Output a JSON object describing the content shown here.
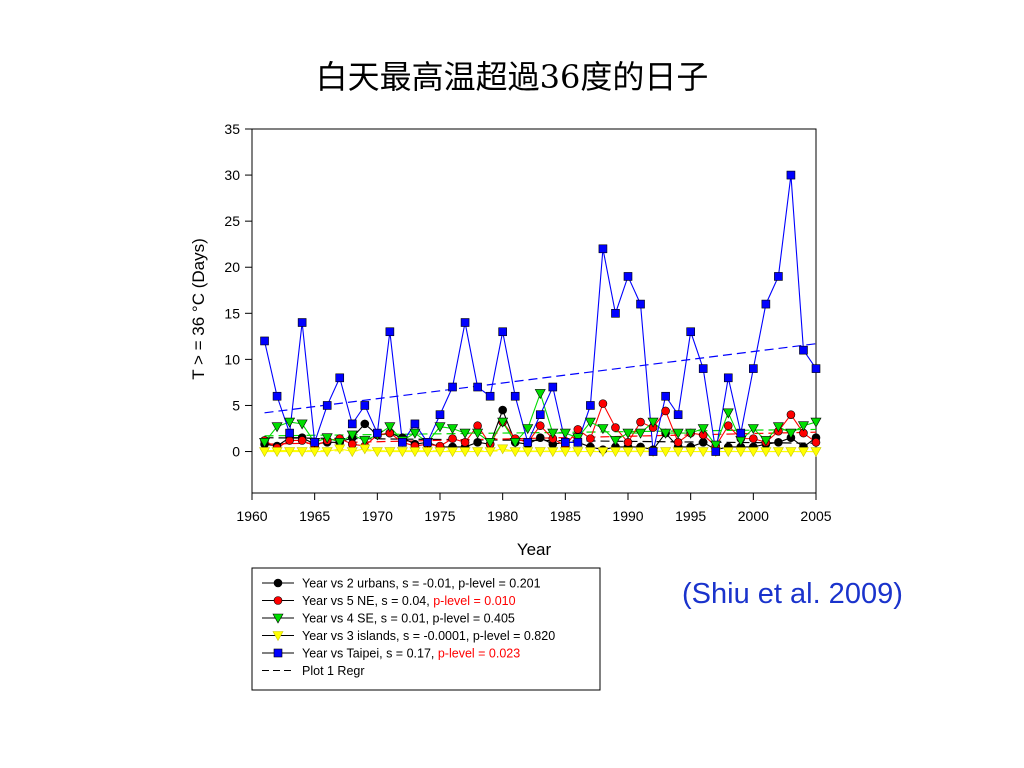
{
  "slide": {
    "title": "白天最高温超過36度的日子",
    "citation": "(Shiu et al. 2009)"
  },
  "chart_data": {
    "type": "line",
    "xlabel": "Year",
    "ylabel": "T > = 36 °C (Days)",
    "xlim": [
      1960,
      2005
    ],
    "ylim": [
      -4.5,
      35
    ],
    "xticks": [
      1960,
      1965,
      1970,
      1975,
      1980,
      1985,
      1990,
      1995,
      2000,
      2005
    ],
    "yticks": [
      0,
      5,
      10,
      15,
      20,
      25,
      30,
      35
    ],
    "grid": false,
    "legend_position": "below",
    "x": [
      1961,
      1962,
      1963,
      1964,
      1965,
      1966,
      1967,
      1968,
      1969,
      1970,
      1971,
      1972,
      1973,
      1974,
      1975,
      1976,
      1977,
      1978,
      1979,
      1980,
      1981,
      1982,
      1983,
      1984,
      1985,
      1986,
      1987,
      1988,
      1989,
      1990,
      1991,
      1992,
      1993,
      1994,
      1995,
      1996,
      1997,
      1998,
      1999,
      2000,
      2001,
      2002,
      2003,
      2004,
      2005
    ],
    "series": [
      {
        "legend_main": "Year vs 2 urbans, s = -0.01, p-level = 0.201",
        "legend_highlight": "",
        "color": "#000000",
        "marker": "circle",
        "values": [
          0.8,
          0.6,
          1.5,
          1.5,
          0.8,
          1.0,
          1.0,
          1.5,
          3.0,
          1.8,
          2.0,
          1.5,
          0.8,
          1.0,
          0.5,
          0.5,
          0.5,
          1.0,
          0.8,
          4.5,
          1.0,
          0.8,
          1.5,
          0.8,
          1.0,
          1.0,
          0.5,
          0.2,
          0.5,
          0.5,
          0.5,
          0.2,
          2.0,
          0.5,
          0.5,
          1.0,
          0.2,
          0.5,
          0.5,
          0.5,
          0.8,
          1.0,
          1.5,
          0.5,
          1.5
        ],
        "trend": [
          1.5,
          0.9
        ]
      },
      {
        "legend_main": "Year vs 5 NE, s = 0.04, ",
        "legend_highlight": "p-level = 0.010",
        "color": "#ff0000",
        "marker": "circle",
        "values": [
          1.2,
          0.4,
          1.2,
          1.2,
          0.6,
          1.2,
          1.4,
          0.8,
          0.6,
          1.8,
          2.0,
          1.0,
          0.6,
          0.8,
          0.6,
          1.4,
          1.0,
          2.8,
          0.8,
          3.2,
          1.4,
          1.0,
          2.8,
          1.4,
          0.6,
          2.4,
          1.4,
          5.2,
          2.6,
          1.0,
          3.2,
          2.6,
          4.4,
          1.0,
          2.0,
          1.8,
          0.6,
          2.8,
          1.4,
          1.4,
          1.0,
          2.2,
          4.0,
          2.0,
          1.0
        ],
        "trend": [
          0.8,
          2.1
        ]
      },
      {
        "legend_main": "Year vs 4 SE, s = 0.01, p-level = 0.405",
        "legend_highlight": "",
        "color": "#00dd00",
        "marker": "triangle-down",
        "values": [
          1.0,
          2.7,
          3.2,
          3.0,
          1.0,
          1.5,
          1.0,
          1.8,
          1.2,
          1.8,
          2.7,
          1.2,
          2.0,
          1.0,
          2.7,
          2.5,
          2.0,
          2.0,
          1.0,
          3.2,
          1.0,
          2.5,
          6.3,
          2.0,
          2.0,
          1.5,
          3.2,
          2.5,
          1.2,
          2.0,
          2.0,
          3.2,
          2.0,
          2.0,
          2.0,
          2.5,
          0.7,
          4.2,
          1.2,
          2.5,
          1.2,
          2.7,
          2.0,
          2.8,
          3.2
        ],
        "trend": [
          1.7,
          2.4
        ]
      },
      {
        "legend_main": "Year vs 3 islands, s = -0.0001, p-level = 0.820",
        "legend_highlight": "",
        "color": "#ffff00",
        "marker": "triangle-down",
        "values": [
          0,
          0,
          0,
          0,
          0,
          0,
          0.3,
          0,
          0.3,
          0,
          0,
          0,
          0,
          0,
          0,
          0,
          0,
          0,
          0,
          0.3,
          0,
          0,
          0,
          0,
          0,
          0,
          0,
          0,
          0,
          0,
          0,
          0,
          0,
          0,
          0,
          0,
          0,
          0,
          0,
          0,
          0,
          0,
          0,
          0,
          0
        ],
        "trend": [
          0.1,
          0.0
        ]
      },
      {
        "legend_main": "Year vs Taipei, s = 0.17, ",
        "legend_highlight": "p-level = 0.023",
        "color": "#0000ff",
        "marker": "square",
        "values": [
          12,
          6,
          2,
          14,
          1,
          5,
          8,
          3,
          5,
          2,
          13,
          1,
          3,
          1,
          4,
          7,
          14,
          7,
          6,
          13,
          6,
          1,
          4,
          7,
          1,
          1,
          5,
          22,
          15,
          19,
          16,
          0,
          6,
          4,
          13,
          9,
          0,
          8,
          2,
          9,
          16,
          19,
          30,
          11,
          9
        ],
        "trend": [
          4.2,
          11.7
        ]
      }
    ],
    "regression_legend": "Plot 1 Regr",
    "highlight_color": "#ff0000"
  }
}
